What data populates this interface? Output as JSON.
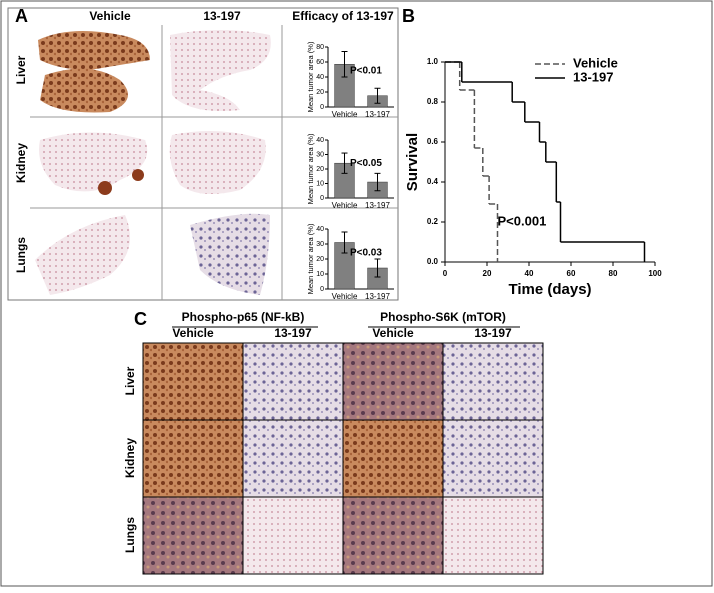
{
  "panel_a": {
    "label": "A",
    "columns": [
      "Vehicle",
      "13-197",
      "Efficacy of 13-197"
    ],
    "rows": [
      "Liver",
      "Kidney",
      "Lungs"
    ]
  },
  "panel_b": {
    "label": "B"
  },
  "panel_c": {
    "label": "C",
    "groups": [
      "Phospho-p65 (NF-kB)",
      "Phospho-S6K (mTOR)"
    ],
    "columns": [
      "Vehicle",
      "13-197",
      "Vehicle",
      "13-197"
    ],
    "rows": [
      "Liver",
      "Kidney",
      "Lungs"
    ]
  },
  "chart_data": [
    {
      "type": "bar",
      "ylabel": "Mean tumor area (%)",
      "categories": [
        "Vehicle",
        "13-197"
      ],
      "values": [
        57,
        15
      ],
      "errors": [
        17,
        10
      ],
      "color": "#808080",
      "ylim": [
        0,
        80
      ],
      "yticks": [
        0,
        20,
        40,
        60,
        80
      ],
      "annotation": "P<0.01"
    },
    {
      "type": "bar",
      "ylabel": "Mean tumor area (%)",
      "categories": [
        "Vehicle",
        "13-197"
      ],
      "values": [
        24,
        11
      ],
      "errors": [
        7,
        6
      ],
      "color": "#808080",
      "ylim": [
        0,
        40
      ],
      "yticks": [
        0,
        10,
        20,
        30,
        40
      ],
      "annotation": "P<0.05"
    },
    {
      "type": "bar",
      "ylabel": "Mean tumor area (%)",
      "categories": [
        "Vehicle",
        "13-197"
      ],
      "values": [
        31,
        14
      ],
      "errors": [
        7,
        6
      ],
      "color": "#808080",
      "ylim": [
        0,
        40
      ],
      "yticks": [
        0,
        10,
        20,
        30,
        40
      ],
      "annotation": "P<0.03"
    },
    {
      "type": "step",
      "xlabel": "Time (days)",
      "ylabel": "Survival",
      "annotation": "P<0.001",
      "xlim": [
        0,
        100
      ],
      "ylim": [
        0,
        1
      ],
      "xticks": [
        0,
        20,
        40,
        60,
        80,
        100
      ],
      "yticks": [
        {
          "value": 0,
          "label": "0.0"
        },
        0.2,
        0.4,
        0.6,
        0.8,
        {
          "value": 1,
          "label": "1.0"
        }
      ],
      "legend": "upper-right",
      "series": [
        {
          "name": "Vehicle",
          "color": "#555555",
          "linestyle": "dashed",
          "x": [
            0,
            7,
            14,
            18,
            21,
            25
          ],
          "values": [
            1,
            0.86,
            0.57,
            0.43,
            0.29,
            0
          ]
        },
        {
          "name": "13-197",
          "color": "#000000",
          "linestyle": "solid",
          "x": [
            0,
            8,
            32,
            38,
            45,
            48,
            53,
            55,
            95
          ],
          "values": [
            1,
            0.9,
            0.8,
            0.7,
            0.6,
            0.5,
            0.3,
            0.1,
            0
          ]
        }
      ]
    }
  ]
}
